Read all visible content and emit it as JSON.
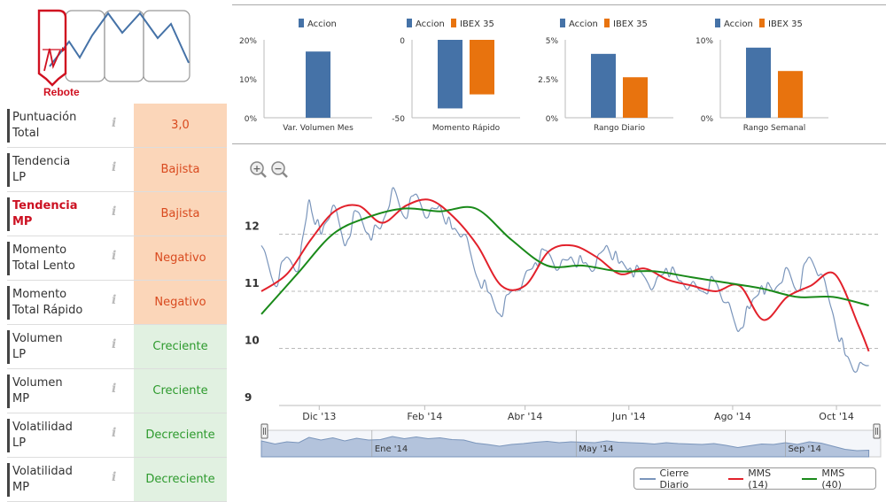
{
  "logo": {
    "label": "Rebote"
  },
  "indicators": [
    {
      "name": "Puntuación Total",
      "lines": [
        "Puntuación",
        "Total"
      ],
      "value": "3,0",
      "tone": "orange",
      "active": false
    },
    {
      "name": "Tendencia LP",
      "lines": [
        "Tendencia",
        "LP"
      ],
      "value": "Bajista",
      "tone": "orange",
      "active": false
    },
    {
      "name": "Tendencia MP",
      "lines": [
        "Tendencia",
        "MP"
      ],
      "value": "Bajista",
      "tone": "orange",
      "active": true
    },
    {
      "name": "Momento Total Lento",
      "lines": [
        "Momento",
        "Total Lento"
      ],
      "value": "Negativo",
      "tone": "orange",
      "active": false
    },
    {
      "name": "Momento Total Rápido",
      "lines": [
        "Momento",
        "Total Rápido"
      ],
      "value": "Negativo",
      "tone": "orange",
      "active": false
    },
    {
      "name": "Volumen LP",
      "lines": [
        "Volumen",
        "LP"
      ],
      "value": "Creciente",
      "tone": "green",
      "active": false
    },
    {
      "name": "Volumen MP",
      "lines": [
        "Volumen",
        "MP"
      ],
      "value": "Creciente",
      "tone": "green",
      "active": false
    },
    {
      "name": "Volatilidad LP",
      "lines": [
        "Volatilidad",
        "LP"
      ],
      "value": "Decreciente",
      "tone": "green",
      "active": false
    },
    {
      "name": "Volatilidad MP",
      "lines": [
        "Volatilidad",
        "MP"
      ],
      "value": "Decreciente",
      "tone": "green",
      "active": false
    }
  ],
  "info_glyph": "i",
  "colors": {
    "accion": "#4572a7",
    "ibex": "#e8730e",
    "cierre": "#7a95bb",
    "mms14": "#e2212b",
    "mms40": "#1a8a1a",
    "navigator": "#b3c3dc"
  },
  "chart_data": [
    {
      "type": "bar",
      "xlabel": "Var. Volumen Mes",
      "series": [
        {
          "name": "Accion",
          "values": [
            17
          ]
        }
      ],
      "ylim": [
        0,
        20
      ],
      "ticks": [
        "0%",
        "10%",
        "20%"
      ],
      "tick_values": [
        0,
        10,
        20
      ]
    },
    {
      "type": "bar",
      "xlabel": "Momento Rápido",
      "series": [
        {
          "name": "Accion",
          "values": [
            -44
          ]
        },
        {
          "name": "IBEX 35",
          "values": [
            -35
          ]
        }
      ],
      "ylim": [
        -50,
        0
      ],
      "ticks": [
        "-50",
        "0"
      ],
      "tick_values": [
        -50,
        0
      ]
    },
    {
      "type": "bar",
      "xlabel": "Rango Diario",
      "series": [
        {
          "name": "Accion",
          "values": [
            4.1
          ]
        },
        {
          "name": "IBEX 35",
          "values": [
            2.6
          ]
        }
      ],
      "ylim": [
        0,
        5
      ],
      "ticks": [
        "0%",
        "2.5%",
        "5%"
      ],
      "tick_values": [
        0,
        2.5,
        5
      ]
    },
    {
      "type": "bar",
      "xlabel": "Rango Semanal",
      "series": [
        {
          "name": "Accion",
          "values": [
            9
          ]
        },
        {
          "name": "IBEX 35",
          "values": [
            6
          ]
        }
      ],
      "ylim": [
        0,
        10
      ],
      "ticks": [
        "0%",
        "10%"
      ],
      "tick_values": [
        0,
        10
      ]
    },
    {
      "type": "line",
      "ylim": [
        9,
        13
      ],
      "yticks": [
        9,
        10,
        11,
        12
      ],
      "xlim": [
        "2013-10-28",
        "2014-10-27"
      ],
      "xticks": [
        {
          "label": "Dic '13",
          "date": "2013-12-01"
        },
        {
          "label": "Feb '14",
          "date": "2014-02-01"
        },
        {
          "label": "Abr '14",
          "date": "2014-04-01"
        },
        {
          "label": "Jun '14",
          "date": "2014-06-01"
        },
        {
          "label": "Ago '14",
          "date": "2014-08-01"
        },
        {
          "label": "Oct '14",
          "date": "2014-10-01"
        }
      ],
      "navigator_ticks": [
        {
          "label": "Ene '14",
          "date": "2014-01-01"
        },
        {
          "label": "May '14",
          "date": "2014-05-01"
        },
        {
          "label": "Sep '14",
          "date": "2014-09-01"
        }
      ],
      "series": [
        {
          "name": "Cierre Diario",
          "points": [
            [
              "2013-10-28",
              11.8
            ],
            [
              "2013-11-05",
              11.1
            ],
            [
              "2013-11-12",
              11.6
            ],
            [
              "2013-11-19",
              11.4
            ],
            [
              "2013-11-25",
              12.6
            ],
            [
              "2013-12-02",
              12.0
            ],
            [
              "2013-12-09",
              12.5
            ],
            [
              "2013-12-16",
              11.8
            ],
            [
              "2013-12-23",
              12.4
            ],
            [
              "2013-12-30",
              12.0
            ],
            [
              "2014-01-06",
              12.1
            ],
            [
              "2014-01-13",
              12.8
            ],
            [
              "2014-01-20",
              12.3
            ],
            [
              "2014-01-27",
              12.7
            ],
            [
              "2014-02-03",
              12.3
            ],
            [
              "2014-02-10",
              12.5
            ],
            [
              "2014-02-17",
              12.1
            ],
            [
              "2014-02-24",
              12.0
            ],
            [
              "2014-03-03",
              11.3
            ],
            [
              "2014-03-10",
              11.0
            ],
            [
              "2014-03-17",
              10.6
            ],
            [
              "2014-03-24",
              11.0
            ],
            [
              "2014-03-31",
              11.2
            ],
            [
              "2014-04-07",
              11.5
            ],
            [
              "2014-04-14",
              11.7
            ],
            [
              "2014-04-21",
              11.4
            ],
            [
              "2014-04-28",
              11.6
            ],
            [
              "2014-05-05",
              11.5
            ],
            [
              "2014-05-12",
              11.4
            ],
            [
              "2014-05-19",
              11.8
            ],
            [
              "2014-05-26",
              11.5
            ],
            [
              "2014-06-02",
              11.4
            ],
            [
              "2014-06-09",
              11.3
            ],
            [
              "2014-06-16",
              11.1
            ],
            [
              "2014-06-23",
              11.4
            ],
            [
              "2014-06-30",
              11.2
            ],
            [
              "2014-07-07",
              11.1
            ],
            [
              "2014-07-14",
              11.0
            ],
            [
              "2014-07-21",
              11.2
            ],
            [
              "2014-07-28",
              10.8
            ],
            [
              "2014-08-04",
              10.3
            ],
            [
              "2014-08-11",
              10.7
            ],
            [
              "2014-08-18",
              11.1
            ],
            [
              "2014-08-25",
              11.0
            ],
            [
              "2014-09-01",
              11.4
            ],
            [
              "2014-09-08",
              11.0
            ],
            [
              "2014-09-15",
              11.6
            ],
            [
              "2014-09-22",
              11.3
            ],
            [
              "2014-09-29",
              10.6
            ],
            [
              "2014-10-06",
              9.9
            ],
            [
              "2014-10-13",
              9.6
            ],
            [
              "2014-10-20",
              9.7
            ]
          ]
        },
        {
          "name": "MMS (14)",
          "points": [
            [
              "2013-10-28",
              11.0
            ],
            [
              "2013-11-12",
              11.3
            ],
            [
              "2013-11-26",
              11.9
            ],
            [
              "2013-12-10",
              12.4
            ],
            [
              "2013-12-24",
              12.5
            ],
            [
              "2014-01-07",
              12.2
            ],
            [
              "2014-01-21",
              12.5
            ],
            [
              "2014-02-04",
              12.6
            ],
            [
              "2014-02-18",
              12.3
            ],
            [
              "2014-03-04",
              11.8
            ],
            [
              "2014-03-18",
              11.1
            ],
            [
              "2014-04-01",
              11.1
            ],
            [
              "2014-04-15",
              11.7
            ],
            [
              "2014-04-29",
              11.8
            ],
            [
              "2014-05-13",
              11.6
            ],
            [
              "2014-05-27",
              11.3
            ],
            [
              "2014-06-10",
              11.4
            ],
            [
              "2014-06-24",
              11.2
            ],
            [
              "2014-07-08",
              11.1
            ],
            [
              "2014-07-22",
              11.0
            ],
            [
              "2014-08-05",
              11.1
            ],
            [
              "2014-08-19",
              10.5
            ],
            [
              "2014-09-02",
              10.9
            ],
            [
              "2014-09-16",
              11.1
            ],
            [
              "2014-09-30",
              11.3
            ],
            [
              "2014-10-14",
              10.4
            ],
            [
              "2014-10-20",
              9.95
            ]
          ]
        },
        {
          "name": "MMS (40)",
          "points": [
            [
              "2013-10-28",
              10.6
            ],
            [
              "2013-11-18",
              11.3
            ],
            [
              "2013-12-09",
              12.0
            ],
            [
              "2013-12-30",
              12.3
            ],
            [
              "2014-01-20",
              12.45
            ],
            [
              "2014-02-10",
              12.4
            ],
            [
              "2014-03-03",
              12.45
            ],
            [
              "2014-03-24",
              11.9
            ],
            [
              "2014-04-14",
              11.45
            ],
            [
              "2014-05-05",
              11.45
            ],
            [
              "2014-05-26",
              11.35
            ],
            [
              "2014-06-16",
              11.35
            ],
            [
              "2014-07-07",
              11.25
            ],
            [
              "2014-07-28",
              11.15
            ],
            [
              "2014-08-18",
              11.05
            ],
            [
              "2014-09-08",
              10.9
            ],
            [
              "2014-09-29",
              10.9
            ],
            [
              "2014-10-20",
              10.75
            ]
          ]
        }
      ]
    }
  ]
}
